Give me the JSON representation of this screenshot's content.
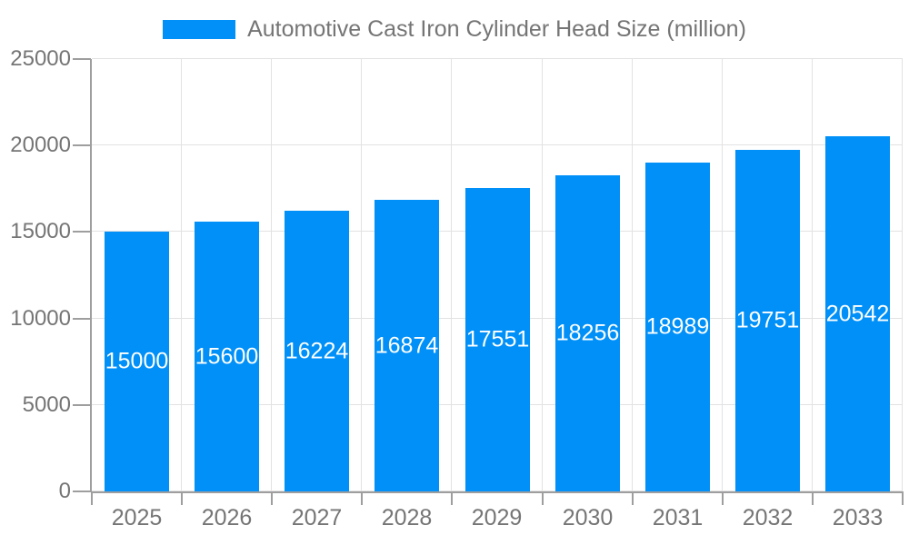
{
  "chart_data": {
    "type": "bar",
    "title": "Automotive Cast Iron Cylinder Head Size (million)",
    "legend": [
      "Automotive Cast Iron Cylinder Head Size (million)"
    ],
    "legend_position": "top-center",
    "categories": [
      "2025",
      "2026",
      "2027",
      "2028",
      "2029",
      "2030",
      "2031",
      "2032",
      "2033"
    ],
    "values": [
      15000,
      15600,
      16224,
      16874,
      17551,
      18256,
      18989,
      19751,
      20542
    ],
    "value_labels_shown": true,
    "value_label_position": "inside-center",
    "xlabel": "",
    "ylabel": "",
    "ylim": [
      0,
      25000
    ],
    "yticks": [
      0,
      5000,
      10000,
      15000,
      20000,
      25000
    ],
    "grid": true,
    "colors": {
      "bar": "#0090f8",
      "axis": "#9e9e9e",
      "grid": "#e2e2e2",
      "axis_text": "#757575",
      "value_label_text": "#ffffff",
      "background": "#ffffff"
    }
  }
}
